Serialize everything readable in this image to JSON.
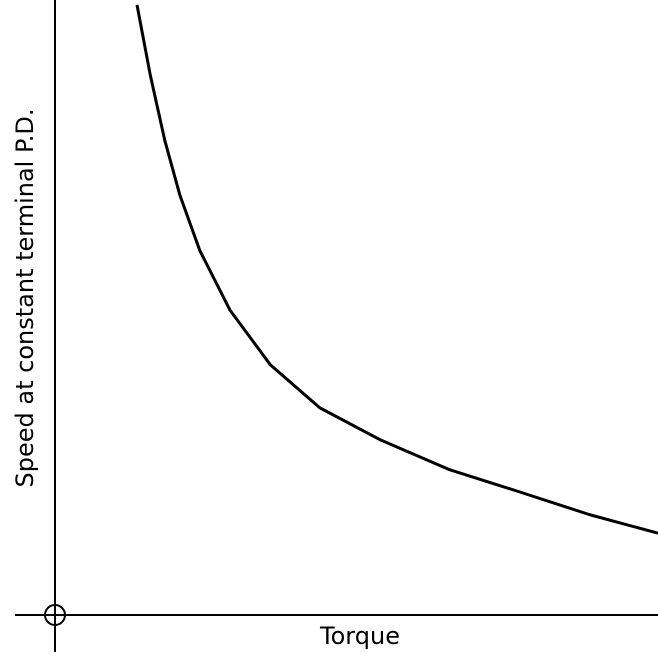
{
  "chart_data": {
    "type": "line",
    "x_label": "Torque",
    "y_label": "Speed at constant terminal P.D.",
    "x": [
      13.6,
      15.8,
      18.2,
      20.7,
      24.0,
      29.0,
      35.7,
      43.9,
      53.9,
      65.5,
      77.1,
      88.7,
      100
    ],
    "series": [
      {
        "color": "#000000",
        "values": [
          99.2,
          87.8,
          77.2,
          68.3,
          59.3,
          49.6,
          40.7,
          33.7,
          28.5,
          23.6,
          20.0,
          16.3,
          13.3
        ]
      }
    ],
    "xlim": [
      0,
      100
    ],
    "ylim": [
      0,
      100
    ]
  }
}
